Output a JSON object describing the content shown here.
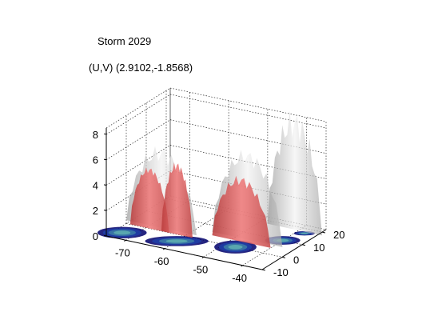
{
  "chart_data": {
    "type": "surface3d",
    "title": "Storm 2029",
    "subtitle": "(U,V) (2.9102,-1.8568)",
    "x_axis": {
      "ticks": [
        -70,
        -60,
        -50,
        -40
      ],
      "range": [
        -75,
        -35
      ]
    },
    "y_axis": {
      "ticks": [
        -10,
        0,
        10,
        20
      ],
      "range": [
        -10,
        22
      ]
    },
    "z_axis": {
      "ticks": [
        0,
        2,
        4,
        6,
        8
      ],
      "range": [
        0,
        8.5
      ]
    },
    "grid": true,
    "surfaces": [
      {
        "label": "outer isosurface",
        "color": "#c8c8c8",
        "opacity": 0.7
      },
      {
        "label": "inner isosurface",
        "color": "#d9504f",
        "opacity": 0.85
      }
    ],
    "base_contour_colors": [
      "#00006b",
      "#1f3fa8",
      "#3d7fa6",
      "#5fb0b0"
    ]
  }
}
